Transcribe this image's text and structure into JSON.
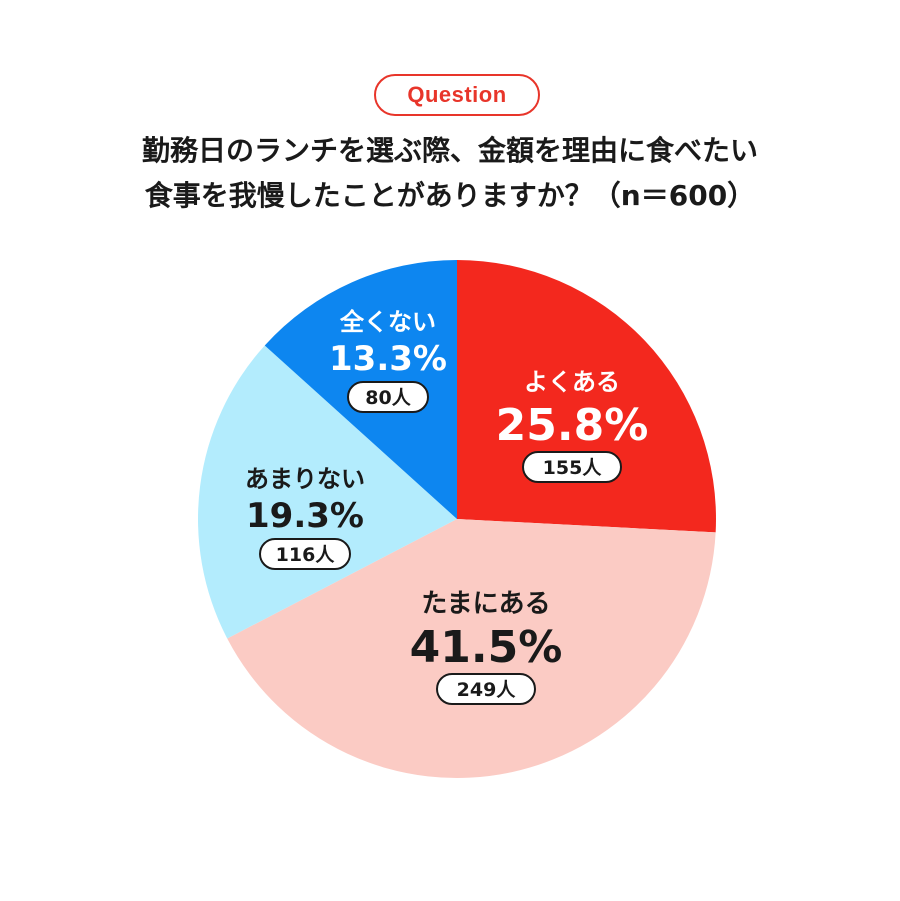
{
  "question_label": "Question",
  "title_lines": [
    "勤務日のランチを選ぶ際、金額を理由に食べたい",
    "食事を我慢したことがありますか？（n＝600）"
  ],
  "colors": {
    "accent": "#e8352a",
    "text": "#1a1a1a"
  },
  "chart_data": {
    "type": "pie",
    "title": "勤務日のランチを選ぶ際、金額を理由に食べたい食事を我慢したことがありますか？（n＝600）",
    "n": 600,
    "slices": [
      {
        "label": "よくある",
        "percent": 25.8,
        "percent_label": "25.8%",
        "count_label": "155人",
        "color": "#f3281e",
        "text_color": "#ffffff"
      },
      {
        "label": "たまにある",
        "percent": 41.5,
        "percent_label": "41.5%",
        "count_label": "249人",
        "color": "#fbcbc4",
        "text_color": "#1a1a1a"
      },
      {
        "label": "あまりない",
        "percent": 19.3,
        "percent_label": "19.3%",
        "count_label": "116人",
        "color": "#b3ecfd",
        "text_color": "#1a1a1a"
      },
      {
        "label": "全くない",
        "percent": 13.3,
        "percent_label": "13.3%",
        "count_label": "80人",
        "color": "#0d86f0",
        "text_color": "#ffffff"
      }
    ],
    "start": "12 o'clock",
    "direction": "clockwise"
  }
}
